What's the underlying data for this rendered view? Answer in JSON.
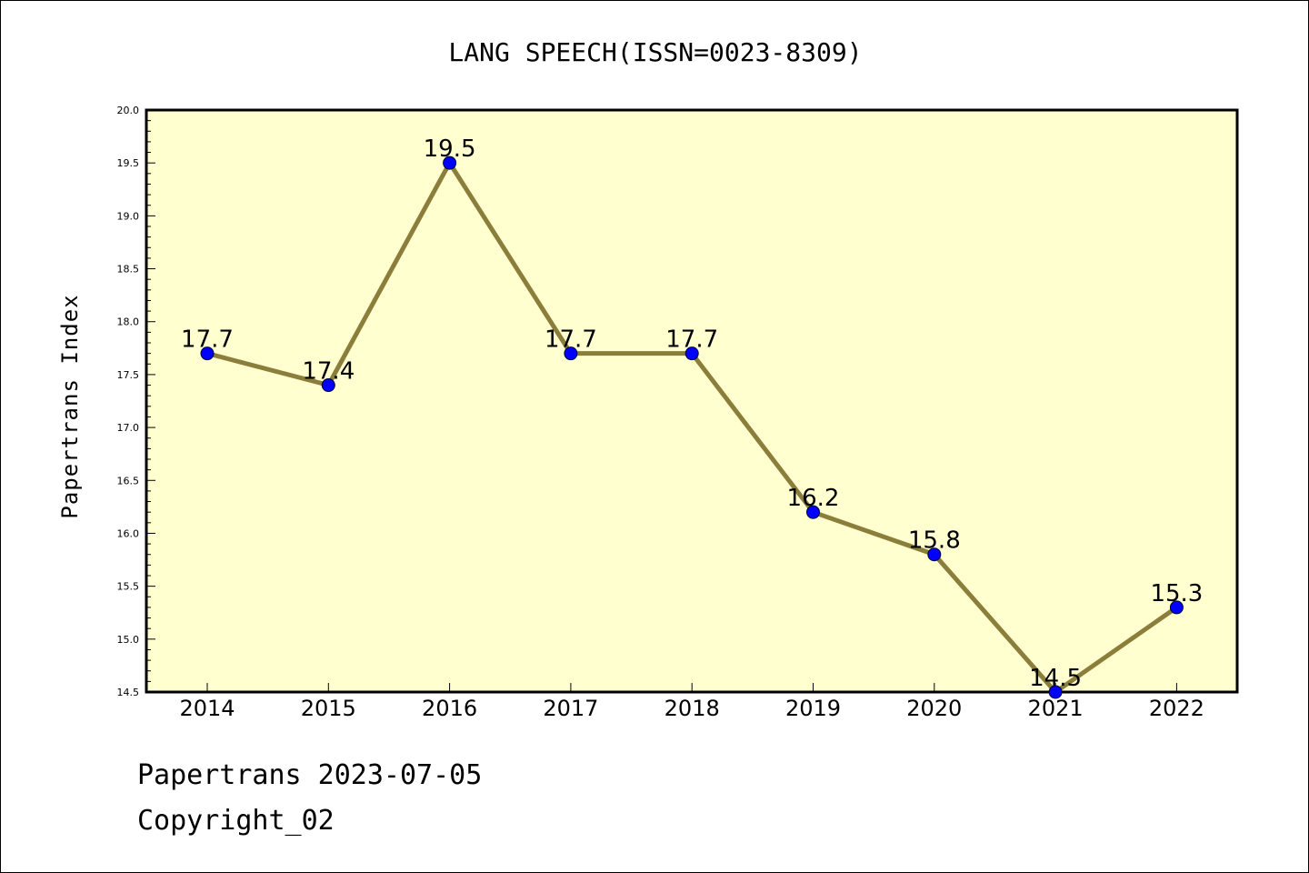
{
  "chart_data": {
    "type": "line",
    "title": "LANG SPEECH(ISSN=0023-8309)",
    "ylabel": "Papertrans Index",
    "xlabel": "",
    "categories": [
      "2014",
      "2015",
      "2016",
      "2017",
      "2018",
      "2019",
      "2020",
      "2021",
      "2022"
    ],
    "values": [
      17.7,
      17.4,
      19.5,
      17.7,
      17.7,
      16.2,
      15.8,
      14.5,
      15.3
    ],
    "data_labels": [
      "17.7",
      "17.4",
      "19.5",
      "17.7",
      "17.7",
      "16.2",
      "15.8",
      "14.5",
      "15.3"
    ],
    "ylim": [
      14.5,
      20.0
    ],
    "yticks": [
      "14.5",
      "15.0",
      "15.5",
      "16.0",
      "16.5",
      "17.0",
      "17.5",
      "18.0",
      "18.5",
      "19.0",
      "19.5",
      "20.0"
    ],
    "grid": false,
    "legend": "none",
    "colors": {
      "plot_background": "#ffffd0",
      "line": "#8b7d3a",
      "marker": "#0000ff",
      "axis": "#000000"
    }
  },
  "footer": {
    "line1": "Papertrans 2023-07-05",
    "line2": "Copyright_02"
  }
}
